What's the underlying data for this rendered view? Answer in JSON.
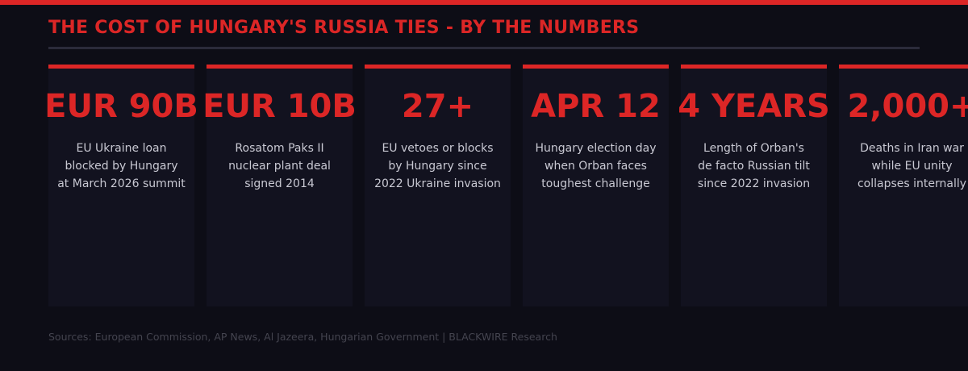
{
  "title": "THE COST OF HUNGARY'S RUSSIA TIES - BY THE NUMBERS",
  "accent_color": "#dc2626",
  "cards": [
    {
      "value": "EUR 90B",
      "lines": [
        "EU Ukraine loan",
        "blocked by Hungary",
        "at March 2026 summit"
      ]
    },
    {
      "value": "EUR 10B",
      "lines": [
        "Rosatom Paks II",
        "nuclear plant deal",
        "signed 2014"
      ]
    },
    {
      "value": "27+",
      "lines": [
        "EU vetoes or blocks",
        "by Hungary since",
        "2022 Ukraine invasion"
      ]
    },
    {
      "value": "APR 12",
      "lines": [
        "Hungary election day",
        "when Orban faces",
        "toughest challenge"
      ]
    },
    {
      "value": "4 YEARS",
      "lines": [
        "Length of Orban's",
        "de facto Russian tilt",
        "since 2022 invasion"
      ]
    },
    {
      "value": "2,000+",
      "lines": [
        "Deaths in Iran war",
        "while EU unity",
        "collapses internally"
      ]
    }
  ],
  "sources": "Sources: European Commission, AP News, Al Jazeera, Hungarian Government | BLACKWIRE Research"
}
